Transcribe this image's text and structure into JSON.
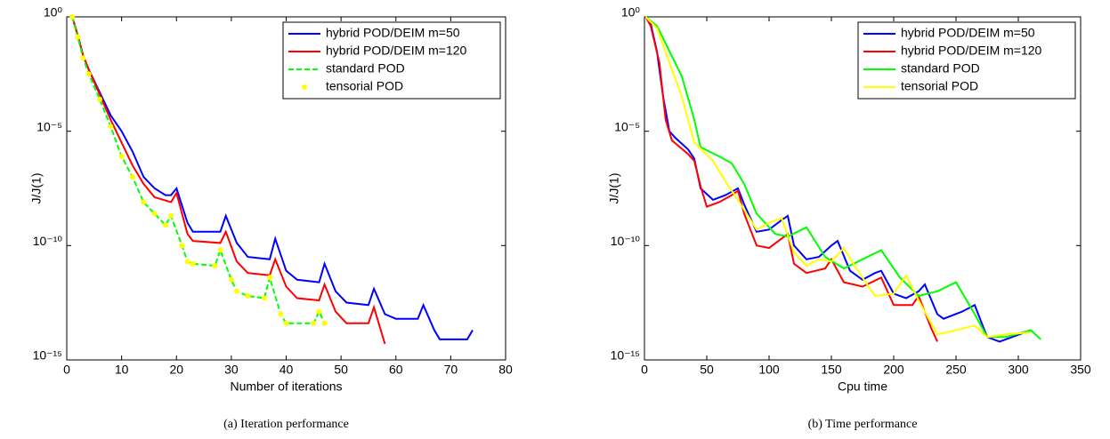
{
  "chart_data": [
    {
      "type": "line",
      "caption": "(a) Iteration performance",
      "xlabel": "Number of iterations",
      "ylabel": "J/J(1)",
      "xlim": [
        0,
        80
      ],
      "xticks": [
        0,
        10,
        20,
        30,
        40,
        50,
        60,
        70,
        80
      ],
      "ylim": [
        1e-15,
        1
      ],
      "yscale": "log",
      "yticks": [
        {
          "value": 1e-15,
          "label": "10⁻¹⁵"
        },
        {
          "value": 1e-10,
          "label": "10⁻¹⁰"
        },
        {
          "value": 1e-05,
          "label": "10⁻⁵"
        },
        {
          "value": 1,
          "label": "10⁰"
        }
      ],
      "legend": "top-right",
      "series": [
        {
          "name": "hybrid POD/DEIM m=50",
          "color": "#0000ff",
          "style": "solid",
          "x": [
            1,
            2,
            3,
            4,
            6,
            8,
            10,
            12,
            14,
            16,
            18,
            19,
            20,
            22,
            23,
            28,
            29,
            31,
            33,
            37,
            38,
            40,
            42,
            46,
            47,
            49,
            51,
            55,
            56,
            58,
            60,
            64,
            65,
            67,
            68,
            73,
            74
          ],
          "values": [
            1,
            0.16,
            0.02,
            0.005,
            0.0005,
            5e-05,
            1e-05,
            1.3e-06,
            1e-07,
            3.2e-08,
            1.6e-08,
            1.6e-08,
            3.2e-08,
            1e-09,
            4e-10,
            4e-10,
            2e-09,
            1.3e-10,
            3.2e-11,
            2.5e-11,
            2e-10,
            7.9e-12,
            3.2e-12,
            2.5e-12,
            1.6e-11,
            1e-12,
            3.2e-13,
            2.5e-13,
            1.3e-12,
            1e-13,
            6.3e-14,
            6.3e-14,
            2.5e-13,
            2e-14,
            7.9e-15,
            7.9e-15,
            2e-14
          ]
        },
        {
          "name": "hybrid POD/DEIM m=120",
          "color": "#ff0000",
          "style": "solid",
          "x": [
            1,
            2,
            3,
            4,
            6,
            8,
            10,
            12,
            14,
            16,
            19,
            20,
            22,
            23,
            28,
            29,
            31,
            33,
            37,
            38,
            40,
            42,
            46,
            47,
            49,
            51,
            55,
            56,
            58
          ],
          "values": [
            1,
            0.16,
            0.02,
            0.005,
            0.0004,
            3.2e-05,
            3.2e-06,
            3.2e-07,
            5e-08,
            1.3e-08,
            7.9e-09,
            2e-08,
            3.2e-10,
            1.6e-10,
            1.3e-10,
            4e-10,
            2e-11,
            6.3e-12,
            5e-12,
            2.5e-11,
            1.6e-12,
            5e-13,
            4e-13,
            2e-12,
            1.3e-13,
            4e-14,
            4e-14,
            2e-13,
            5e-15
          ]
        },
        {
          "name": "standard POD",
          "color": "#00ff00",
          "style": "dashed",
          "x": [
            1,
            2,
            3,
            4,
            6,
            8,
            10,
            12,
            14,
            16,
            18,
            19,
            21,
            22,
            23,
            27,
            28,
            30,
            31,
            33,
            36,
            37,
            39,
            40,
            45,
            46,
            47
          ],
          "values": [
            1,
            0.13,
            0.016,
            0.0032,
            0.00025,
            1.6e-05,
            7.9e-07,
            1e-07,
            7.9e-09,
            2.5e-09,
            7.9e-10,
            2e-09,
            1e-10,
            2e-11,
            1.6e-11,
            1.3e-11,
            6.3e-11,
            3.2e-12,
            1e-12,
            6.3e-13,
            5e-13,
            4e-12,
            1e-13,
            4e-14,
            4e-14,
            1.3e-13,
            4e-14
          ]
        },
        {
          "name": "tensorial POD",
          "color": "#ffff00",
          "style": "dots",
          "x": [
            1,
            2,
            3,
            4,
            6,
            8,
            10,
            12,
            14,
            16,
            18,
            19,
            21,
            22,
            23,
            27,
            28,
            30,
            31,
            33,
            36,
            37,
            39,
            40,
            45,
            46,
            47
          ],
          "values": [
            1,
            0.13,
            0.016,
            0.0032,
            0.00025,
            1.6e-05,
            7.9e-07,
            1e-07,
            7.9e-09,
            2.5e-09,
            7.9e-10,
            2e-09,
            1e-10,
            2e-11,
            1.6e-11,
            1.3e-11,
            6.3e-11,
            3.2e-12,
            1e-12,
            6.3e-13,
            5e-13,
            4e-12,
            1e-13,
            4e-14,
            4e-14,
            1.3e-13,
            4e-14
          ]
        }
      ]
    },
    {
      "type": "line",
      "caption": "(b) Time performance",
      "xlabel": "Cpu time",
      "ylabel": "J/J(1)",
      "xlim": [
        0,
        350
      ],
      "xticks": [
        0,
        50,
        100,
        150,
        200,
        250,
        300,
        350
      ],
      "ylim": [
        1e-15,
        1
      ],
      "yscale": "log",
      "yticks": [
        {
          "value": 1e-15,
          "label": "10⁻¹⁵"
        },
        {
          "value": 1e-10,
          "label": "10⁻¹⁰"
        },
        {
          "value": 1e-05,
          "label": "10⁻⁵"
        },
        {
          "value": 1,
          "label": "10⁰"
        }
      ],
      "legend": "top-right",
      "series": [
        {
          "name": "hybrid POD/DEIM m=50",
          "color": "#0000ff",
          "style": "solid",
          "x": [
            1,
            5,
            10,
            15,
            20,
            25,
            35,
            40,
            45,
            55,
            65,
            75,
            80,
            90,
            100,
            110,
            115,
            120,
            130,
            140,
            150,
            155,
            165,
            175,
            185,
            190,
            200,
            210,
            220,
            225,
            235,
            240,
            255,
            265,
            275,
            285,
            295,
            310
          ],
          "values": [
            1,
            0.5,
            0.032,
            0.00032,
            1e-05,
            5e-06,
            1.6e-06,
            6.3e-07,
            3.2e-08,
            1e-08,
            1.6e-08,
            3.2e-08,
            6.3e-09,
            4e-10,
            5e-10,
            1.3e-09,
            2e-09,
            1e-10,
            2.5e-11,
            3.2e-11,
            1e-10,
            1.6e-10,
            7.9e-12,
            3.2e-12,
            6.3e-12,
            7.9e-12,
            7.9e-13,
            5e-13,
            1e-12,
            2e-12,
            1e-13,
            6.3e-14,
            1.3e-13,
            2.5e-13,
            1e-14,
            6.3e-15,
            1e-14,
            2e-14
          ]
        },
        {
          "name": "hybrid POD/DEIM m=120",
          "color": "#ff0000",
          "style": "solid",
          "x": [
            1,
            5,
            12,
            17,
            22,
            35,
            40,
            45,
            50,
            60,
            70,
            75,
            80,
            90,
            100,
            115,
            120,
            130,
            145,
            150,
            160,
            175,
            190,
            200,
            215,
            220,
            230,
            235
          ],
          "values": [
            1,
            0.4,
            0.01,
            3.2e-05,
            4e-06,
            1e-06,
            5e-07,
            4e-08,
            5e-09,
            7.9e-09,
            1.6e-08,
            2.5e-08,
            2.5e-09,
            1e-10,
            7.9e-11,
            3.2e-10,
            1.6e-11,
            6.3e-12,
            1e-11,
            2.5e-11,
            2.5e-12,
            1.6e-12,
            4e-12,
            2.5e-13,
            2.5e-13,
            6.3e-13,
            2.5e-14,
            6.3e-15
          ]
        },
        {
          "name": "standard POD",
          "color": "#00ff00",
          "style": "solid",
          "x": [
            1,
            10,
            20,
            30,
            40,
            45,
            60,
            70,
            80,
            90,
            105,
            115,
            130,
            145,
            160,
            175,
            190,
            205,
            220,
            235,
            250,
            265,
            275,
            290,
            310,
            318
          ],
          "values": [
            1,
            0.4,
            0.032,
            0.0025,
            3.2e-05,
            2e-06,
            7.9e-07,
            4e-07,
            5e-08,
            2.5e-09,
            3.2e-10,
            2.5e-10,
            6.3e-10,
            3.2e-11,
            1e-11,
            2.5e-11,
            6.3e-11,
            4e-12,
            6.3e-13,
            1e-12,
            2.5e-12,
            1e-13,
            1e-14,
            1e-14,
            2e-14,
            7.9e-15
          ]
        },
        {
          "name": "tensorial POD",
          "color": "#ffff00",
          "style": "solid",
          "x": [
            1,
            10,
            20,
            30,
            40,
            55,
            65,
            75,
            90,
            100,
            110,
            120,
            130,
            140,
            150,
            160,
            170,
            185,
            200,
            210,
            220,
            235,
            250,
            265,
            275,
            290,
            310
          ],
          "values": [
            1,
            0.32,
            0.01,
            0.00032,
            3.2e-06,
            5e-07,
            6.3e-08,
            1e-08,
            5e-10,
            1e-09,
            1.6e-09,
            5e-11,
            1.3e-11,
            2.5e-11,
            2e-11,
            7.9e-11,
            1e-11,
            6.3e-13,
            7.9e-13,
            5e-12,
            4e-13,
            1.3e-14,
            2e-14,
            3.2e-14,
            1e-14,
            1.3e-14,
            1.6e-14
          ]
        }
      ]
    }
  ]
}
